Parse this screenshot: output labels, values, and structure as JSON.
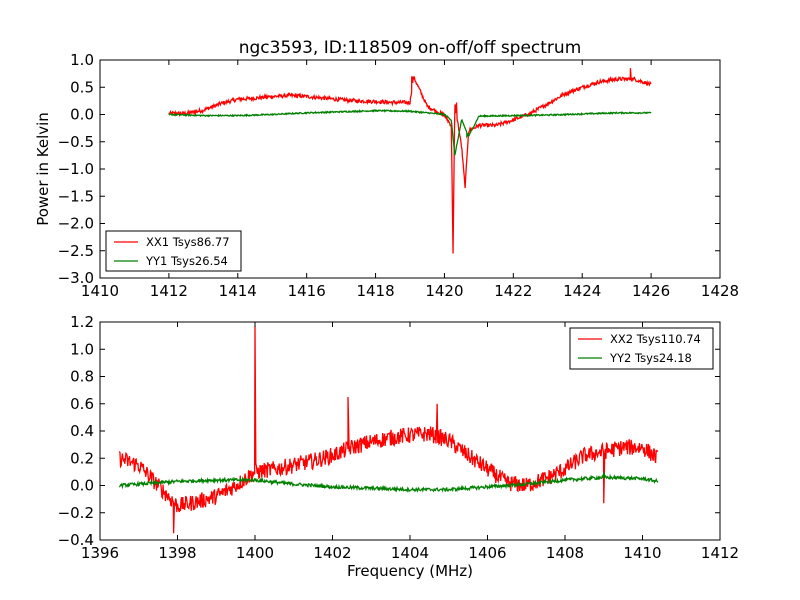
{
  "title": "ngc3593, ID:118509 on-off/off spectrum",
  "chart_data": [
    {
      "type": "line",
      "title": "ngc3593, ID:118509 on-off/off spectrum",
      "xlabel": "",
      "ylabel": "Power in Kelvin",
      "xlim": [
        1410,
        1428
      ],
      "ylim": [
        -3.0,
        1.0
      ],
      "xticks": [
        "1410",
        "1412",
        "1414",
        "1416",
        "1418",
        "1420",
        "1422",
        "1424",
        "1426",
        "1428"
      ],
      "yticks": [
        "−3.0",
        "−2.5",
        "−2.0",
        "−1.5",
        "−1.0",
        "−0.5",
        "0.0",
        "0.5",
        "1.0"
      ],
      "legend_position": "lower-left",
      "series": [
        {
          "name": "XX1 Tsys86.77",
          "color": "#ff0000",
          "x": [
            1412.0,
            1412.5,
            1413.0,
            1413.5,
            1414.0,
            1414.5,
            1415.0,
            1415.5,
            1416.0,
            1416.5,
            1417.0,
            1417.5,
            1418.0,
            1418.5,
            1419.0,
            1419.1,
            1419.5,
            1420.0,
            1420.2,
            1420.25,
            1420.3,
            1420.5,
            1420.6,
            1420.7,
            1421.0,
            1421.5,
            1422.0,
            1422.5,
            1423.0,
            1423.5,
            1424.0,
            1424.5,
            1425.0,
            1425.5,
            1426.0
          ],
          "y": [
            0.02,
            0.02,
            0.08,
            0.2,
            0.28,
            0.3,
            0.33,
            0.35,
            0.33,
            0.3,
            0.27,
            0.25,
            0.24,
            0.22,
            0.22,
            0.7,
            0.15,
            -0.02,
            -0.2,
            -2.55,
            0.2,
            -0.6,
            -1.35,
            -0.3,
            -0.2,
            -0.2,
            -0.1,
            0.02,
            0.2,
            0.38,
            0.5,
            0.6,
            0.65,
            0.65,
            0.55
          ],
          "spikes": [
            {
              "x": 1419.05,
              "y": 0.7
            },
            {
              "x": 1420.25,
              "y": -2.55
            },
            {
              "x": 1420.35,
              "y": 0.22
            },
            {
              "x": 1420.6,
              "y": -1.35
            },
            {
              "x": 1425.4,
              "y": 0.85
            }
          ]
        },
        {
          "name": "YY1 Tsys26.54",
          "color": "#008000",
          "x": [
            1412.0,
            1413.0,
            1414.0,
            1415.0,
            1416.0,
            1417.0,
            1418.0,
            1419.0,
            1419.5,
            1420.0,
            1420.2,
            1420.3,
            1420.5,
            1420.7,
            1421.0,
            1422.0,
            1423.0,
            1424.0,
            1425.0,
            1426.0
          ],
          "y": [
            0.0,
            -0.02,
            -0.02,
            0.0,
            0.03,
            0.05,
            0.07,
            0.06,
            0.03,
            0.0,
            -0.1,
            -0.75,
            -0.1,
            -0.4,
            -0.03,
            -0.02,
            -0.01,
            0.01,
            0.03,
            0.03
          ],
          "spikes": [
            {
              "x": 1420.3,
              "y": -0.75
            },
            {
              "x": 1420.65,
              "y": -0.4
            }
          ]
        }
      ]
    },
    {
      "type": "line",
      "title": "",
      "xlabel": "Frequency (MHz)",
      "ylabel": "",
      "xlim": [
        1396,
        1412
      ],
      "ylim": [
        -0.4,
        1.2
      ],
      "xticks": [
        "1396",
        "1398",
        "1400",
        "1402",
        "1404",
        "1406",
        "1408",
        "1410",
        "1412"
      ],
      "yticks": [
        "−0.4",
        "−0.2",
        "0.0",
        "0.2",
        "0.4",
        "0.6",
        "0.8",
        "1.0",
        "1.2"
      ],
      "legend_position": "top-right",
      "series": [
        {
          "name": "XX2 Tsys110.74",
          "color": "#ff0000",
          "x": [
            1396.5,
            1397.0,
            1397.5,
            1398.0,
            1398.5,
            1399.0,
            1399.5,
            1400.0,
            1400.5,
            1401.0,
            1401.5,
            1402.0,
            1402.5,
            1403.0,
            1403.5,
            1404.0,
            1404.5,
            1405.0,
            1405.5,
            1406.0,
            1406.5,
            1407.0,
            1407.5,
            1408.0,
            1408.5,
            1409.0,
            1409.5,
            1410.0,
            1410.4
          ],
          "y": [
            0.2,
            0.15,
            0.0,
            -0.15,
            -0.12,
            -0.08,
            0.0,
            0.1,
            0.12,
            0.15,
            0.18,
            0.22,
            0.28,
            0.32,
            0.35,
            0.37,
            0.38,
            0.33,
            0.22,
            0.12,
            0.02,
            0.0,
            0.05,
            0.12,
            0.22,
            0.25,
            0.28,
            0.28,
            0.2
          ],
          "spikes": [
            {
              "x": 1400.0,
              "y": 1.17
            },
            {
              "x": 1402.4,
              "y": 0.65
            },
            {
              "x": 1404.7,
              "y": 0.6
            },
            {
              "x": 1397.9,
              "y": -0.35
            },
            {
              "x": 1409.0,
              "y": -0.13
            }
          ]
        },
        {
          "name": "YY2 Tsys24.18",
          "color": "#008000",
          "x": [
            1396.5,
            1397.0,
            1398.0,
            1399.0,
            1400.0,
            1401.0,
            1402.0,
            1403.0,
            1404.0,
            1405.0,
            1406.0,
            1407.0,
            1408.0,
            1409.0,
            1410.0,
            1410.4
          ],
          "y": [
            0.0,
            0.01,
            0.03,
            0.04,
            0.04,
            0.01,
            -0.01,
            -0.02,
            -0.03,
            -0.03,
            -0.01,
            0.01,
            0.04,
            0.06,
            0.05,
            0.03
          ],
          "spikes": [
            {
              "x": 1409.0,
              "y": 0.1
            }
          ]
        }
      ]
    }
  ]
}
